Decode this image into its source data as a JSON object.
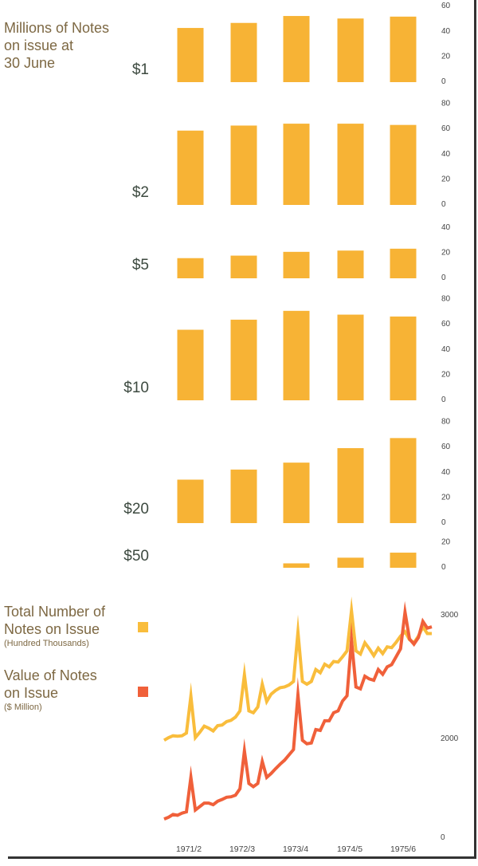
{
  "chart_data": [
    {
      "type": "bar",
      "title": "Millions of Notes on issue at 30 June",
      "categories": [
        "1971/2",
        "1972/3",
        "1973/4",
        "1974/5",
        "1975/6"
      ],
      "panels": [
        {
          "label": "$1",
          "ticks": [
            0,
            20,
            40,
            60
          ],
          "values": [
            43,
            47,
            52.5,
            50.5,
            52
          ]
        },
        {
          "label": "$2",
          "ticks": [
            0,
            20,
            40,
            60,
            80
          ],
          "values": [
            59,
            63,
            64.5,
            64.5,
            63.5
          ]
        },
        {
          "label": "$5",
          "ticks": [
            0,
            20,
            40
          ],
          "values": [
            16,
            18,
            21,
            22,
            23.5
          ]
        },
        {
          "label": "$10",
          "ticks": [
            0,
            20,
            40,
            60,
            80
          ],
          "values": [
            56,
            64,
            71,
            68,
            66.5
          ]
        },
        {
          "label": "$20",
          "ticks": [
            0,
            20,
            40,
            60,
            80
          ],
          "values": [
            34.5,
            42.5,
            48,
            59.5,
            67.5
          ]
        },
        {
          "label": "$50",
          "ticks": [
            0,
            20
          ],
          "values": [
            null,
            null,
            3.5,
            8,
            12
          ]
        }
      ],
      "color": "#f7b335"
    },
    {
      "type": "line",
      "xticks": [
        "1971/2",
        "1972/3",
        "1973/4",
        "1974/5",
        "1975/6"
      ],
      "yticks": [
        0,
        2000,
        3000
      ],
      "x_unit": "month index (monthly, mid-1971 to mid-1976)",
      "series": [
        {
          "name": "Total Number of Notes on Issue",
          "unit": "(Hundred Thousands)",
          "color": "#f9bd3c",
          "values": [
            1946,
            2000,
            2015,
            2011,
            2015,
            2037,
            2335,
            2000,
            2043,
            2093,
            2076,
            2054,
            2097,
            2102,
            2130,
            2140,
            2166,
            2216,
            2508,
            2216,
            2201,
            2248,
            2432,
            2292,
            2352,
            2382,
            2404,
            2410,
            2426,
            2454,
            2853,
            2454,
            2432,
            2454,
            2551,
            2525,
            2594,
            2572,
            2616,
            2611,
            2654,
            2702,
            3026,
            2702,
            2676,
            2767,
            2719,
            2663,
            2724,
            2680,
            2734,
            2728,
            2771,
            2821,
            2857,
            2793,
            2767,
            2821,
            2896,
            2842,
            2842
          ]
        },
        {
          "name": "Value of Notes on Issue",
          "unit": "($ Million)",
          "color": "#f0603a",
          "values": [
            354,
            391,
            445,
            429,
            472,
            498,
            1195,
            536,
            606,
            675,
            675,
            643,
            713,
            750,
            793,
            804,
            836,
            965,
            1731,
            1072,
            1008,
            1072,
            1517,
            1195,
            1276,
            1372,
            1463,
            1544,
            1651,
            1758,
            2346,
            1946,
            1876,
            1892,
            2065,
            2058,
            2136,
            2136,
            2201,
            2216,
            2296,
            2339,
            2788,
            2410,
            2395,
            2497,
            2475,
            2464,
            2551,
            2512,
            2572,
            2590,
            2654,
            2719,
            3015,
            2799,
            2756,
            2810,
            2940,
            2886,
            2896
          ]
        }
      ]
    }
  ],
  "legend": {
    "total_title": "Total Number of Notes on Issue",
    "total_l1": "Total Number of",
    "total_l2": "Notes on Issue",
    "total_unit": "(Hundred Thousands)",
    "value_l1": "Value of Notes",
    "value_l2": "on Issue",
    "value_unit": "($ Million)"
  },
  "header": {
    "l1": "Millions of Notes",
    "l2": "on issue at",
    "l3": "30 June"
  }
}
